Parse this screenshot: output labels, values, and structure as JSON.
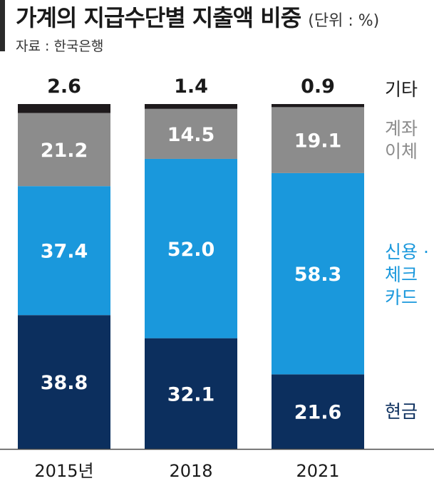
{
  "header": {
    "title": "가계의 지급수단별 지출액 비중",
    "unit": "(단위 : %)",
    "source": "자료 : 한국은행"
  },
  "colors": {
    "cash": "#0c2f5e",
    "card": "#1a98dc",
    "transfer": "#8c8c8c",
    "other": "#1e1a1c"
  },
  "chart_data": {
    "type": "bar",
    "stacked": true,
    "categories": [
      "2015년",
      "2018",
      "2021"
    ],
    "series": [
      {
        "name": "현금",
        "values": [
          38.8,
          32.1,
          21.6
        ]
      },
      {
        "name": "신용 · 체크 카드",
        "values": [
          37.4,
          52.0,
          58.3
        ]
      },
      {
        "name": "계좌 이체",
        "values": [
          21.2,
          14.5,
          19.1
        ]
      },
      {
        "name": "기타",
        "values": [
          2.6,
          1.4,
          0.9
        ]
      }
    ],
    "ylim": [
      0,
      100
    ]
  },
  "legend": {
    "cash": "현금",
    "card": "신용 ·\n체크\n카드",
    "transfer": "계좌\n이체",
    "other": "기타"
  }
}
